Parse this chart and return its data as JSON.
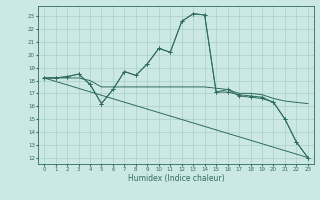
{
  "title": "",
  "xlabel": "Humidex (Indice chaleur)",
  "bg_color": "#cce8e4",
  "grid_color": "#aacfcb",
  "line_color": "#2e6b60",
  "xlim": [
    -0.5,
    23.5
  ],
  "ylim": [
    11.5,
    23.8
  ],
  "yticks": [
    12,
    13,
    14,
    15,
    16,
    17,
    18,
    19,
    20,
    21,
    22,
    23
  ],
  "xticks": [
    0,
    1,
    2,
    3,
    4,
    5,
    6,
    7,
    8,
    9,
    10,
    11,
    12,
    13,
    14,
    15,
    16,
    17,
    18,
    19,
    20,
    21,
    22,
    23
  ],
  "series": [
    {
      "x": [
        0,
        23
      ],
      "y": [
        18.2,
        12.0
      ],
      "marker": false
    },
    {
      "x": [
        0,
        1,
        2,
        3,
        4,
        5,
        6,
        7,
        8,
        9,
        10,
        11,
        12,
        13,
        14,
        15,
        16,
        17,
        18,
        19,
        20,
        21,
        22,
        23
      ],
      "y": [
        18.2,
        18.2,
        18.3,
        18.5,
        17.7,
        16.2,
        17.3,
        18.7,
        18.4,
        19.3,
        20.5,
        20.2,
        22.6,
        23.2,
        23.1,
        17.1,
        17.1,
        16.9,
        16.8,
        16.7,
        16.3,
        15.0,
        13.2,
        12.0
      ],
      "marker": true
    },
    {
      "x": [
        0,
        1,
        2,
        3,
        4,
        5,
        6,
        7,
        8,
        9,
        10,
        11,
        12,
        13,
        14,
        15,
        16,
        17,
        18,
        19,
        20,
        21,
        22,
        23
      ],
      "y": [
        18.2,
        18.2,
        18.3,
        18.5,
        17.7,
        16.2,
        17.3,
        18.7,
        18.4,
        19.3,
        20.5,
        20.2,
        22.6,
        23.2,
        23.1,
        17.1,
        17.3,
        16.8,
        16.7,
        16.6,
        16.3,
        15.0,
        13.2,
        12.0
      ],
      "marker": true
    },
    {
      "x": [
        0,
        1,
        2,
        3,
        4,
        5,
        6,
        7,
        8,
        9,
        10,
        11,
        12,
        13,
        14,
        15,
        16,
        17,
        18,
        19,
        20,
        21,
        22,
        23
      ],
      "y": [
        18.2,
        18.2,
        18.2,
        18.2,
        18.0,
        17.5,
        17.5,
        17.5,
        17.5,
        17.5,
        17.5,
        17.5,
        17.5,
        17.5,
        17.5,
        17.4,
        17.3,
        17.0,
        17.0,
        16.9,
        16.6,
        16.4,
        16.3,
        16.2
      ],
      "marker": false
    }
  ]
}
